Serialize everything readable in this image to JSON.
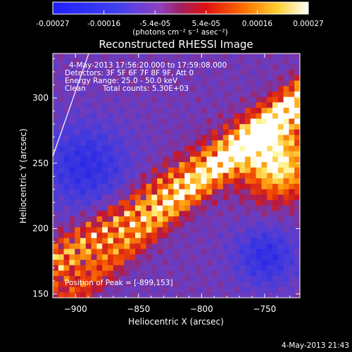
{
  "colorbar": {
    "ticks": [
      "-0.00027",
      "-0.00016",
      "-5.4e-05",
      "5.4e-05",
      "0.00016",
      "0.00027"
    ],
    "unit_label": "(photons cm⁻² s⁻¹ asec⁻²)"
  },
  "chart_data": {
    "type": "heatmap",
    "title": "Reconstructed RHESSI Image",
    "xlabel": "Heliocentric X (arcsec)",
    "ylabel": "Heliocentric Y (arcsec)",
    "xlim": [
      -918,
      -722
    ],
    "ylim": [
      147,
      334
    ],
    "x_ticks": [
      -900,
      -850,
      -800,
      -750
    ],
    "y_ticks": [
      150,
      200,
      250,
      300
    ],
    "colormap": "RHESSI diverging (blue-purple-red-orange-yellow-white)",
    "value_range": [
      -0.00027,
      0.00027
    ],
    "limb_line": true,
    "annotations": {
      "time_range": "4-May-2013 17:56:20.000 to 17:59:08.000",
      "detectors": "Detectors: 3F 5F 6F 7F 8F 9F, Att 0",
      "energy": "Energy Range: 25.0 - 50.0 keV",
      "method": "Clean",
      "counts": "Total counts: 5.30E+03",
      "peak": "Position of Peak = [-899,153]"
    }
  },
  "footer": {
    "timestamp": "4-May-2013 21:43"
  }
}
